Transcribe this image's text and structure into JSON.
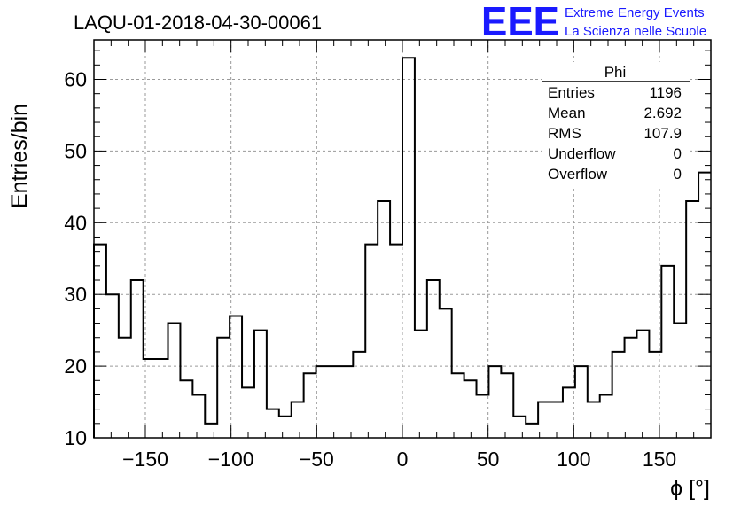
{
  "run_title": "LAQU-01-2018-04-30-00061",
  "logo": {
    "text": "EEE",
    "line1": "Extreme Energy Events",
    "line2": "La Scienza nelle Scuole",
    "color": "#1a1aff"
  },
  "stats": {
    "name": "Phi",
    "rows": [
      {
        "label": "Entries",
        "value": "1196"
      },
      {
        "label": "Mean",
        "value": "2.692"
      },
      {
        "label": "RMS",
        "value": "107.9"
      },
      {
        "label": "Underflow",
        "value": "0"
      },
      {
        "label": "Overflow",
        "value": "0"
      }
    ]
  },
  "chart_data": {
    "type": "histogram",
    "title": "LAQU-01-2018-04-30-00061",
    "xlabel": "ϕ [°]",
    "ylabel": "Entries/bin",
    "xlim": [
      -180,
      180
    ],
    "ylim": [
      10,
      65.5
    ],
    "bin_width": 7.2,
    "bin_start": -180,
    "values": [
      37,
      30,
      24,
      32,
      21,
      21,
      26,
      18,
      16,
      12,
      24,
      27,
      17,
      25,
      14,
      13,
      15,
      19,
      20,
      20,
      20,
      22,
      37,
      43,
      37,
      63,
      25,
      32,
      28,
      19,
      18,
      16,
      20,
      19,
      13,
      12,
      15,
      15,
      17,
      20,
      15,
      16,
      22,
      24,
      25,
      22,
      34,
      26,
      43,
      47
    ],
    "xticks": [
      -150,
      -100,
      -50,
      0,
      50,
      100,
      150
    ],
    "xtick_labels": [
      "−150",
      "−100",
      "−50",
      "0",
      "50",
      "100",
      "150"
    ],
    "yticks": [
      10,
      20,
      30,
      40,
      50,
      60
    ],
    "ytick_labels": [
      "10",
      "20",
      "30",
      "40",
      "50",
      "60"
    ],
    "grid": true,
    "legend": "stats box top-right"
  }
}
